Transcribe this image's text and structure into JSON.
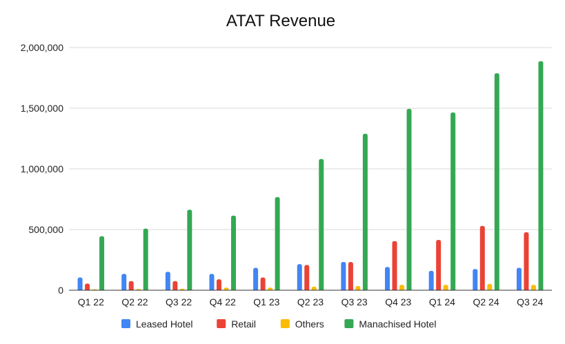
{
  "chart_data": {
    "type": "bar",
    "title": "ATAT Revenue",
    "xlabel": "",
    "ylabel": "",
    "ylim": [
      0,
      2000000
    ],
    "yticks": [
      0,
      500000,
      1000000,
      1500000,
      2000000
    ],
    "ytick_labels": [
      "0",
      "500,000",
      "1,000,000",
      "1,500,000",
      "2,000,000"
    ],
    "categories": [
      "Q1 22",
      "Q2 22",
      "Q3 22",
      "Q4 22",
      "Q1 23",
      "Q2 23",
      "Q3 23",
      "Q4 23",
      "Q1 24",
      "Q2 24",
      "Q3 24"
    ],
    "series": [
      {
        "name": "Leased Hotel",
        "color": "#4285f4",
        "values": [
          105000,
          135000,
          152000,
          135000,
          185000,
          215000,
          233000,
          192000,
          160000,
          175000,
          185000
        ]
      },
      {
        "name": "Retail",
        "color": "#ea4335",
        "values": [
          55000,
          75000,
          75000,
          90000,
          105000,
          208000,
          232000,
          405000,
          415000,
          530000,
          478000
        ]
      },
      {
        "name": "Others",
        "color": "#fbbc04",
        "values": [
          8000,
          10000,
          12000,
          22000,
          22000,
          30000,
          35000,
          45000,
          45000,
          52000,
          45000
        ]
      },
      {
        "name": "Manachised Hotel",
        "color": "#34a853",
        "values": [
          445000,
          508000,
          663000,
          615000,
          768000,
          1082000,
          1290000,
          1495000,
          1465000,
          1788000,
          1888000
        ]
      }
    ],
    "legend": "bottom",
    "grid": true
  }
}
